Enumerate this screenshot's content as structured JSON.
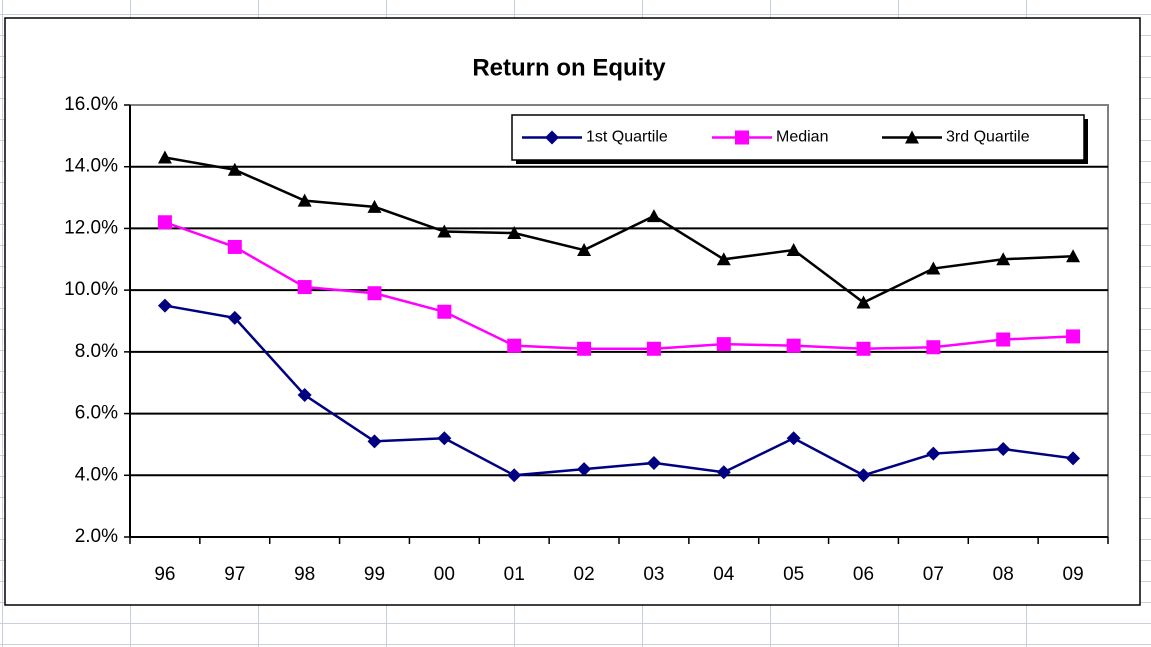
{
  "chart_data": {
    "type": "line",
    "title": "Return on Equity",
    "categories": [
      "96",
      "97",
      "98",
      "99",
      "00",
      "01",
      "02",
      "03",
      "04",
      "05",
      "06",
      "07",
      "08",
      "09"
    ],
    "series": [
      {
        "name": "1st Quartile",
        "color": "#000080",
        "marker": "diamond",
        "values": [
          9.5,
          9.1,
          6.6,
          5.1,
          5.2,
          4.0,
          4.2,
          4.4,
          4.1,
          5.2,
          4.0,
          4.7,
          4.85,
          4.55
        ]
      },
      {
        "name": "Median",
        "color": "#ff00ff",
        "marker": "square",
        "values": [
          12.2,
          11.4,
          10.1,
          9.9,
          9.3,
          8.2,
          8.1,
          8.1,
          8.25,
          8.2,
          8.1,
          8.15,
          8.4,
          8.5
        ]
      },
      {
        "name": "3rd Quartile",
        "color": "#000000",
        "marker": "triangle",
        "values": [
          14.3,
          13.9,
          12.9,
          12.7,
          11.9,
          11.85,
          11.3,
          12.4,
          11.0,
          11.3,
          9.6,
          10.7,
          11.0,
          11.1
        ]
      }
    ],
    "ylim": [
      2,
      16
    ],
    "yticks": [
      {
        "value": 2,
        "label": "2.0%"
      },
      {
        "value": 4,
        "label": "4.0%"
      },
      {
        "value": 6,
        "label": "6.0%"
      },
      {
        "value": 8,
        "label": "8.0%"
      },
      {
        "value": 10,
        "label": "10.0%"
      },
      {
        "value": 12,
        "label": "12.0%"
      },
      {
        "value": 14,
        "label": "14.0%"
      },
      {
        "value": 16,
        "label": "16.0%"
      }
    ],
    "grid": true,
    "legend": "top-right"
  }
}
